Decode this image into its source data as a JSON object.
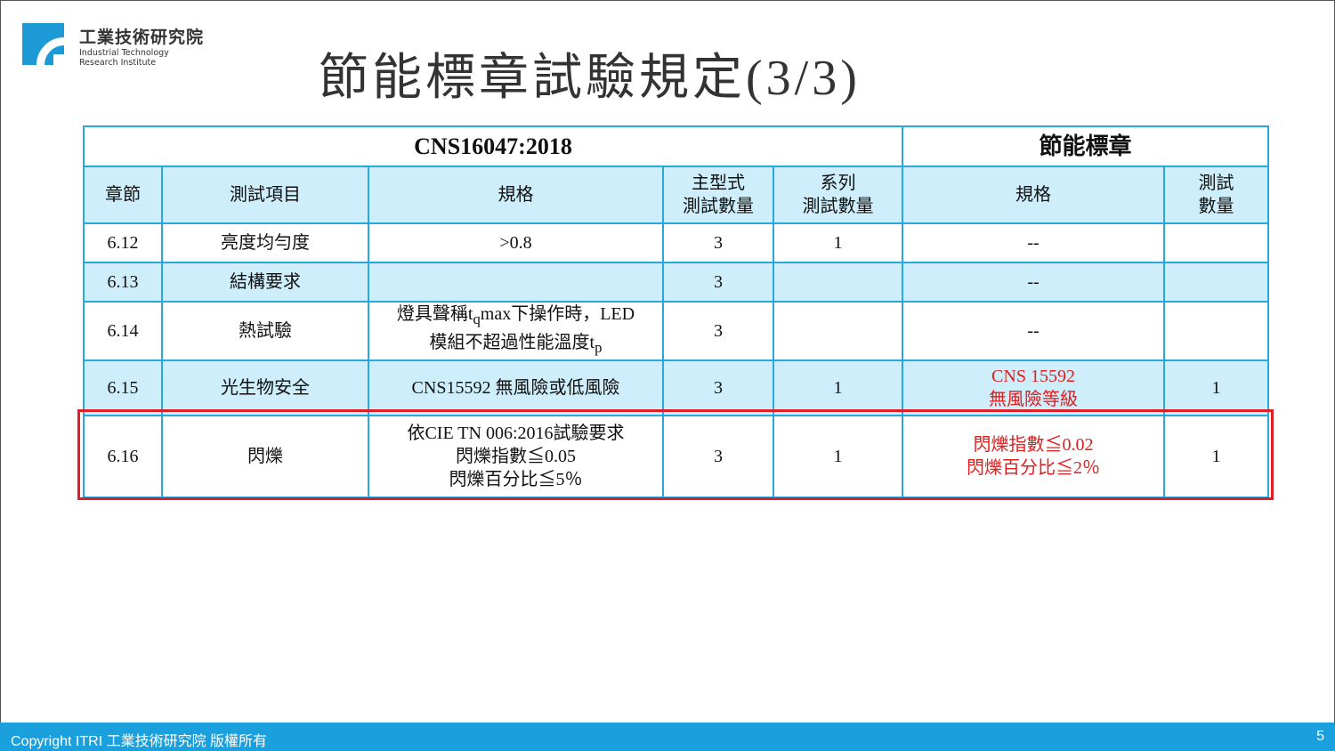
{
  "logo": {
    "zh": "工業技術研究院",
    "en1": "Industrial Technology",
    "en2": "Research Institute"
  },
  "title": "節能標章試驗規定(3/3)",
  "table": {
    "group_left": "CNS16047:2018",
    "group_right": "節能標章",
    "headers": [
      "章節",
      "測試項目",
      "規格",
      "主型式\n測試數量",
      "系列\n測試數量",
      "規格",
      "測試\n數量"
    ],
    "rows": [
      {
        "ch": "6.12",
        "item": "亮度均勻度",
        "spec": ">0.8",
        "main": "3",
        "series": "1",
        "label_spec": "--",
        "label_qty": ""
      },
      {
        "ch": "6.13",
        "item": "結構要求",
        "spec": "",
        "main": "3",
        "series": "",
        "label_spec": "--",
        "label_qty": ""
      },
      {
        "ch": "6.14",
        "item": "熱試驗",
        "spec_a": "燈具聲稱t",
        "spec_a_sub": "q",
        "spec_b": "max下操作時，LED",
        "spec_c": "模組不超過性能溫度t",
        "spec_c_sub": "p",
        "main": "3",
        "series": "",
        "label_spec": "--",
        "label_qty": ""
      },
      {
        "ch": "6.15",
        "item": "光生物安全",
        "spec": "CNS15592 無風險或低風險",
        "main": "3",
        "series": "1",
        "label_spec1": "CNS 15592",
        "label_spec2": "無風險等級",
        "label_qty": "1"
      },
      {
        "ch": "6.16",
        "item": "閃爍",
        "spec1": "依CIE TN 006:2016試驗要求",
        "spec2": "閃爍指數≦0.05",
        "spec3": "閃爍百分比≦5％",
        "main": "3",
        "series": "1",
        "label_spec1": "閃爍指數≦0.02",
        "label_spec2": "閃爍百分比≦2％",
        "label_qty": "1"
      }
    ]
  },
  "colors": {
    "border": "#29a8e0",
    "row_fill": "#cdeefa",
    "highlight": "#e01e28",
    "footer": "#1aa0dc"
  },
  "footer": {
    "copyright": "Copyright ITRI 工業技術研究院  版權所有",
    "page": "5"
  }
}
